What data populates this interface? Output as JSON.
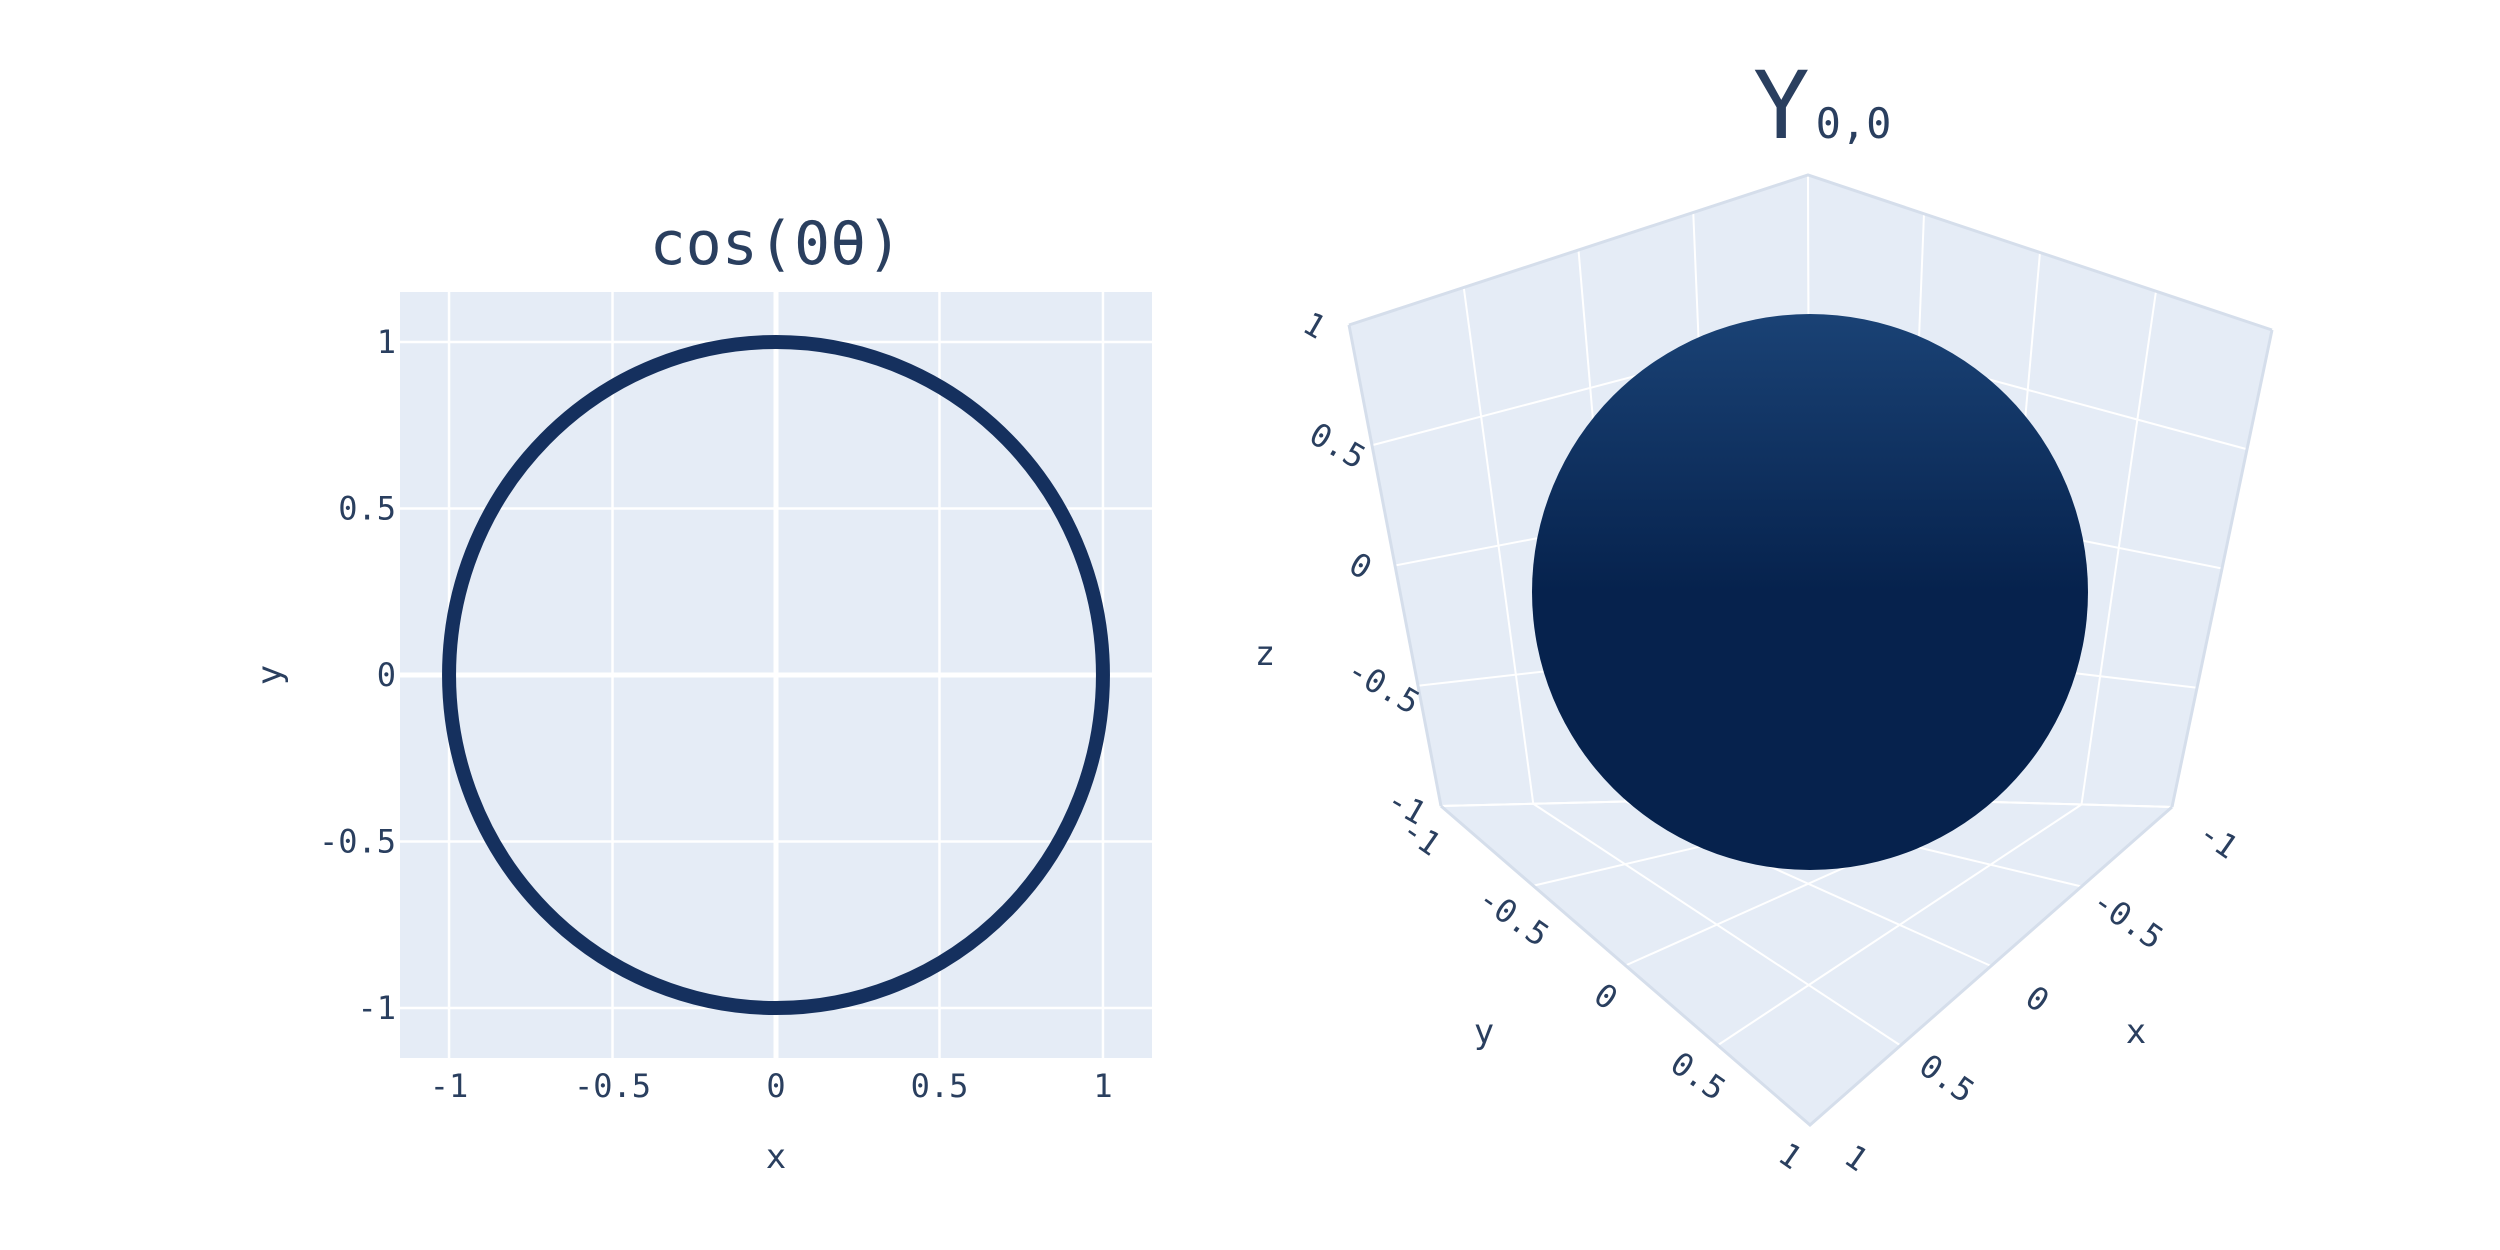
{
  "chart_data": [
    {
      "type": "line",
      "title": "cos(0θ)",
      "xlabel": "x",
      "ylabel": "y",
      "xlim": [
        -1.15,
        1.15
      ],
      "ylim": [
        -1.15,
        1.15
      ],
      "x_ticks": [
        "-1",
        "-0.5",
        "0",
        "0.5",
        "1"
      ],
      "y_ticks": [
        "1",
        "0.5",
        "0",
        "-0.5",
        "-1"
      ],
      "grid": true,
      "series": [
        {
          "shape": "circle",
          "radius": 1,
          "center": [
            0,
            0
          ],
          "color": "#15305e"
        }
      ]
    },
    {
      "type": "surface",
      "title_main": "Y",
      "title_sub": "0,0",
      "xlabel": "x",
      "ylabel": "y",
      "zlabel": "z",
      "x_ticks": [
        "-1",
        "-0.5",
        "0",
        "0.5",
        "1"
      ],
      "y_ticks": [
        "-1",
        "-0.5",
        "0",
        "0.5",
        "1"
      ],
      "z_ticks": [
        "1",
        "0.5",
        "0",
        "-0.5",
        "-1"
      ],
      "surface": {
        "shape": "sphere",
        "radius": 1,
        "color_top": "#1a4275",
        "color_bottom": "#06224d"
      }
    }
  ]
}
